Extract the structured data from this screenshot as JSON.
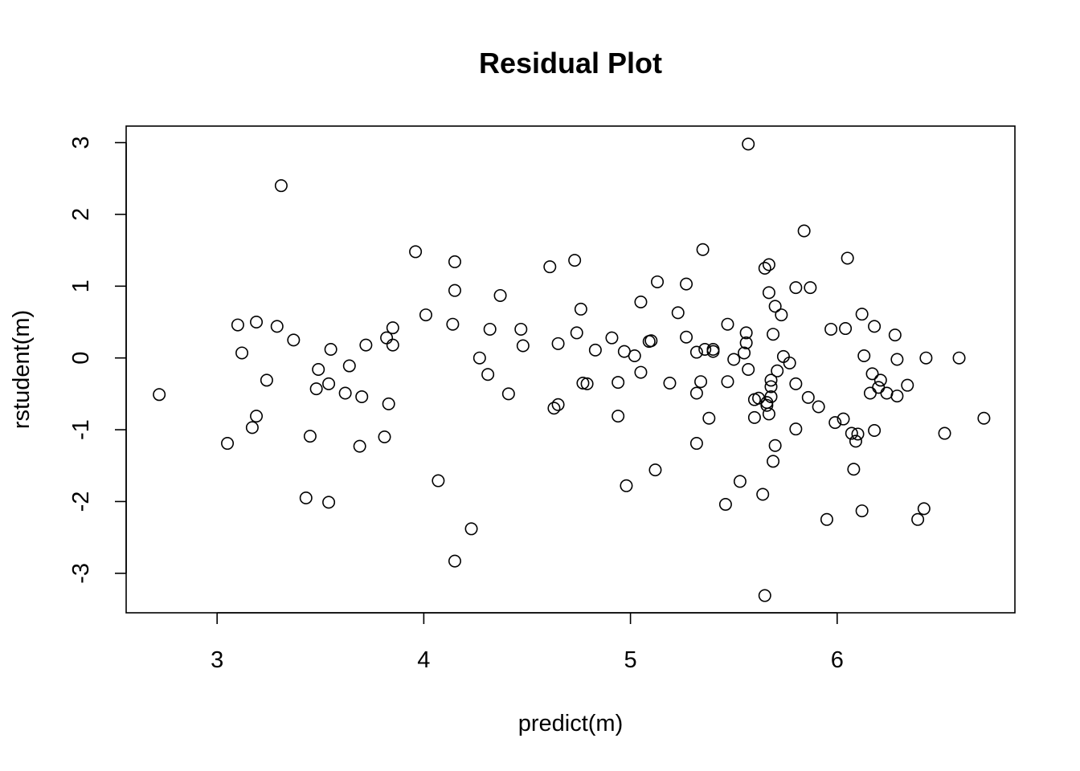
{
  "chart_data": {
    "type": "scatter",
    "title": "Residual Plot",
    "xlabel": "predict(m)",
    "ylabel": "rstudent(m)",
    "xlim": [
      2.56,
      6.86
    ],
    "ylim": [
      -3.55,
      3.23
    ],
    "xticks": [
      3,
      4,
      5,
      6
    ],
    "yticks": [
      -3,
      -2,
      -1,
      0,
      1,
      2,
      3
    ],
    "xtick_labels": [
      "3",
      "4",
      "5",
      "6"
    ],
    "ytick_labels": [
      "-3",
      "-2",
      "-1",
      "0",
      "1",
      "2",
      "3"
    ],
    "grid": false,
    "marker": "open-circle",
    "colors": {
      "marker": "#000000",
      "axes": "#000000",
      "background": "#ffffff"
    },
    "points": [
      {
        "x": 2.72,
        "y": -0.51
      },
      {
        "x": 3.05,
        "y": -1.19
      },
      {
        "x": 3.1,
        "y": 0.46
      },
      {
        "x": 3.12,
        "y": 0.07
      },
      {
        "x": 3.17,
        "y": -0.97
      },
      {
        "x": 3.19,
        "y": 0.5
      },
      {
        "x": 3.19,
        "y": -0.81
      },
      {
        "x": 3.24,
        "y": -0.31
      },
      {
        "x": 3.29,
        "y": 0.44
      },
      {
        "x": 3.31,
        "y": 2.4
      },
      {
        "x": 3.37,
        "y": 0.25
      },
      {
        "x": 3.43,
        "y": -1.95
      },
      {
        "x": 3.45,
        "y": -1.09
      },
      {
        "x": 3.48,
        "y": -0.43
      },
      {
        "x": 3.49,
        "y": -0.16
      },
      {
        "x": 3.54,
        "y": -0.36
      },
      {
        "x": 3.54,
        "y": -2.01
      },
      {
        "x": 3.55,
        "y": 0.12
      },
      {
        "x": 3.62,
        "y": -0.49
      },
      {
        "x": 3.64,
        "y": -0.11
      },
      {
        "x": 3.69,
        "y": -1.23
      },
      {
        "x": 3.7,
        "y": -0.54
      },
      {
        "x": 3.72,
        "y": 0.18
      },
      {
        "x": 3.81,
        "y": -1.1
      },
      {
        "x": 3.82,
        "y": 0.28
      },
      {
        "x": 3.83,
        "y": -0.64
      },
      {
        "x": 3.85,
        "y": 0.18
      },
      {
        "x": 3.85,
        "y": 0.42
      },
      {
        "x": 3.96,
        "y": 1.48
      },
      {
        "x": 4.01,
        "y": 0.6
      },
      {
        "x": 4.07,
        "y": -1.71
      },
      {
        "x": 4.14,
        "y": 0.47
      },
      {
        "x": 4.15,
        "y": 0.94
      },
      {
        "x": 4.15,
        "y": 1.34
      },
      {
        "x": 4.15,
        "y": -2.83
      },
      {
        "x": 4.23,
        "y": -2.38
      },
      {
        "x": 4.27,
        "y": 0.0
      },
      {
        "x": 4.31,
        "y": -0.23
      },
      {
        "x": 4.32,
        "y": 0.4
      },
      {
        "x": 4.37,
        "y": 0.87
      },
      {
        "x": 4.41,
        "y": -0.5
      },
      {
        "x": 4.47,
        "y": 0.4
      },
      {
        "x": 4.48,
        "y": 0.17
      },
      {
        "x": 4.61,
        "y": 1.27
      },
      {
        "x": 4.63,
        "y": -0.7
      },
      {
        "x": 4.65,
        "y": -0.65
      },
      {
        "x": 4.65,
        "y": 0.2
      },
      {
        "x": 4.73,
        "y": 1.36
      },
      {
        "x": 4.74,
        "y": 0.35
      },
      {
        "x": 4.76,
        "y": 0.68
      },
      {
        "x": 4.77,
        "y": -0.35
      },
      {
        "x": 4.79,
        "y": -0.36
      },
      {
        "x": 4.83,
        "y": 0.11
      },
      {
        "x": 4.91,
        "y": 0.28
      },
      {
        "x": 4.94,
        "y": -0.34
      },
      {
        "x": 4.94,
        "y": -0.81
      },
      {
        "x": 4.97,
        "y": 0.09
      },
      {
        "x": 4.98,
        "y": -1.78
      },
      {
        "x": 5.02,
        "y": 0.03
      },
      {
        "x": 5.05,
        "y": -0.2
      },
      {
        "x": 5.05,
        "y": 0.78
      },
      {
        "x": 5.09,
        "y": 0.23
      },
      {
        "x": 5.1,
        "y": 0.24
      },
      {
        "x": 5.12,
        "y": -1.56
      },
      {
        "x": 5.13,
        "y": 1.06
      },
      {
        "x": 5.19,
        "y": -0.35
      },
      {
        "x": 5.23,
        "y": 0.63
      },
      {
        "x": 5.27,
        "y": 0.29
      },
      {
        "x": 5.27,
        "y": 1.03
      },
      {
        "x": 5.32,
        "y": 0.08
      },
      {
        "x": 5.32,
        "y": -0.49
      },
      {
        "x": 5.32,
        "y": -1.19
      },
      {
        "x": 5.34,
        "y": -0.33
      },
      {
        "x": 5.35,
        "y": 1.51
      },
      {
        "x": 5.36,
        "y": 0.12
      },
      {
        "x": 5.38,
        "y": -0.84
      },
      {
        "x": 5.4,
        "y": 0.12
      },
      {
        "x": 5.4,
        "y": 0.09
      },
      {
        "x": 5.46,
        "y": -2.04
      },
      {
        "x": 5.47,
        "y": 0.47
      },
      {
        "x": 5.47,
        "y": -0.33
      },
      {
        "x": 5.5,
        "y": -0.02
      },
      {
        "x": 5.53,
        "y": -1.72
      },
      {
        "x": 5.55,
        "y": 0.07
      },
      {
        "x": 5.56,
        "y": 0.35
      },
      {
        "x": 5.56,
        "y": 0.21
      },
      {
        "x": 5.57,
        "y": 2.98
      },
      {
        "x": 5.57,
        "y": -0.16
      },
      {
        "x": 5.6,
        "y": -0.58
      },
      {
        "x": 5.6,
        "y": -0.83
      },
      {
        "x": 5.62,
        "y": -0.56
      },
      {
        "x": 5.64,
        "y": -1.9
      },
      {
        "x": 5.65,
        "y": -3.31
      },
      {
        "x": 5.65,
        "y": 1.25
      },
      {
        "x": 5.66,
        "y": -0.66
      },
      {
        "x": 5.66,
        "y": -0.62
      },
      {
        "x": 5.67,
        "y": 1.3
      },
      {
        "x": 5.67,
        "y": 0.91
      },
      {
        "x": 5.67,
        "y": -0.78
      },
      {
        "x": 5.68,
        "y": -0.4
      },
      {
        "x": 5.68,
        "y": -0.31
      },
      {
        "x": 5.68,
        "y": -0.54
      },
      {
        "x": 5.69,
        "y": 0.33
      },
      {
        "x": 5.69,
        "y": -1.44
      },
      {
        "x": 5.7,
        "y": 0.72
      },
      {
        "x": 5.7,
        "y": -1.22
      },
      {
        "x": 5.71,
        "y": -0.18
      },
      {
        "x": 5.73,
        "y": 0.6
      },
      {
        "x": 5.74,
        "y": 0.02
      },
      {
        "x": 5.77,
        "y": -0.07
      },
      {
        "x": 5.8,
        "y": 0.98
      },
      {
        "x": 5.8,
        "y": -0.99
      },
      {
        "x": 5.8,
        "y": -0.36
      },
      {
        "x": 5.84,
        "y": 1.77
      },
      {
        "x": 5.86,
        "y": -0.55
      },
      {
        "x": 5.87,
        "y": 0.98
      },
      {
        "x": 5.91,
        "y": -0.68
      },
      {
        "x": 5.95,
        "y": -2.25
      },
      {
        "x": 5.97,
        "y": 0.4
      },
      {
        "x": 5.99,
        "y": -0.9
      },
      {
        "x": 6.03,
        "y": -0.85
      },
      {
        "x": 6.04,
        "y": 0.41
      },
      {
        "x": 6.05,
        "y": 1.39
      },
      {
        "x": 6.07,
        "y": -1.05
      },
      {
        "x": 6.08,
        "y": -1.55
      },
      {
        "x": 6.09,
        "y": -1.16
      },
      {
        "x": 6.1,
        "y": -1.06
      },
      {
        "x": 6.12,
        "y": 0.61
      },
      {
        "x": 6.12,
        "y": -2.13
      },
      {
        "x": 6.13,
        "y": 0.03
      },
      {
        "x": 6.16,
        "y": -0.49
      },
      {
        "x": 6.17,
        "y": -0.22
      },
      {
        "x": 6.18,
        "y": 0.44
      },
      {
        "x": 6.18,
        "y": -1.01
      },
      {
        "x": 6.2,
        "y": -0.41
      },
      {
        "x": 6.21,
        "y": -0.31
      },
      {
        "x": 6.24,
        "y": -0.49
      },
      {
        "x": 6.28,
        "y": 0.32
      },
      {
        "x": 6.29,
        "y": -0.02
      },
      {
        "x": 6.29,
        "y": -0.53
      },
      {
        "x": 6.34,
        "y": -0.38
      },
      {
        "x": 6.39,
        "y": -2.25
      },
      {
        "x": 6.42,
        "y": -2.1
      },
      {
        "x": 6.43,
        "y": 0.0
      },
      {
        "x": 6.52,
        "y": -1.05
      },
      {
        "x": 6.59,
        "y": 0.0
      },
      {
        "x": 6.71,
        "y": -0.84
      }
    ]
  }
}
